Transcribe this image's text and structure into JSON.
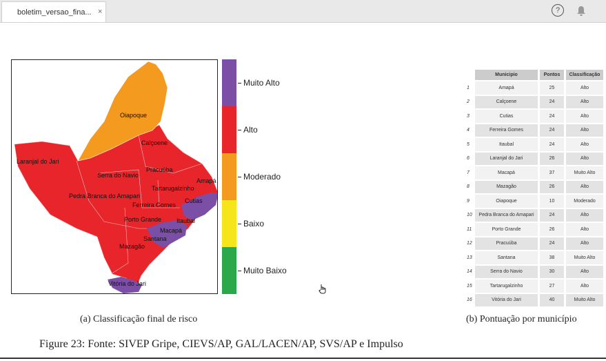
{
  "tab": {
    "title": "boletim_versao_fina...",
    "close": "×"
  },
  "toolbar": {
    "help": "?",
    "bell": "bell"
  },
  "map": {
    "labels": [
      "Oiapoque",
      "Calçoene",
      "Laranjal do Jari",
      "Serra do Navio",
      "Pracuúba",
      "Amapá",
      "Tartarugalzinho",
      "Pedra Branca do Amapari",
      "Ferreira Gomes",
      "Cutias",
      "Porto Grande",
      "Itaubal",
      "Macapá",
      "Santana",
      "Mazagão",
      "Vitória do Jari"
    ]
  },
  "legend": [
    {
      "label": "Muito Alto",
      "color": "#7b4fa6"
    },
    {
      "label": "Alto",
      "color": "#e8252a"
    },
    {
      "label": "Moderado",
      "color": "#f39a1f"
    },
    {
      "label": "Baixo",
      "color": "#f7e51b"
    },
    {
      "label": "Muito Baixo",
      "color": "#2aa84a"
    }
  ],
  "table": {
    "headers": [
      "Municipio",
      "Pontos",
      "Classificação"
    ],
    "rows": [
      [
        "1",
        "Amapá",
        "25",
        "Alto"
      ],
      [
        "2",
        "Calçoene",
        "24",
        "Alto"
      ],
      [
        "3",
        "Cutias",
        "24",
        "Alto"
      ],
      [
        "4",
        "Ferreira Gomes",
        "24",
        "Alto"
      ],
      [
        "5",
        "Itaubal",
        "24",
        "Alto"
      ],
      [
        "6",
        "Laranjal do Jari",
        "26",
        "Alto"
      ],
      [
        "7",
        "Macapá",
        "37",
        "Muito Alto"
      ],
      [
        "8",
        "Mazagão",
        "26",
        "Alto"
      ],
      [
        "9",
        "Oiapoque",
        "10",
        "Moderado"
      ],
      [
        "10",
        "Pedra Branca do Amapari",
        "24",
        "Alto"
      ],
      [
        "11",
        "Porto Grande",
        "26",
        "Alto"
      ],
      [
        "12",
        "Pracuúba",
        "24",
        "Alto"
      ],
      [
        "13",
        "Santana",
        "38",
        "Muito Alto"
      ],
      [
        "14",
        "Serra do Navio",
        "30",
        "Alto"
      ],
      [
        "15",
        "Tartarugalzinho",
        "27",
        "Alto"
      ],
      [
        "16",
        "Vitória do Jari",
        "40",
        "Muito Alto"
      ]
    ]
  },
  "captions": {
    "a": "(a) Classificação final de risco",
    "b": "(b) Pontuação por município",
    "figure": "Figure 23: Fonte: SIVEP Gripe, CIEVS/AP, GAL/LACEN/AP, SVS/AP e Impulso"
  }
}
